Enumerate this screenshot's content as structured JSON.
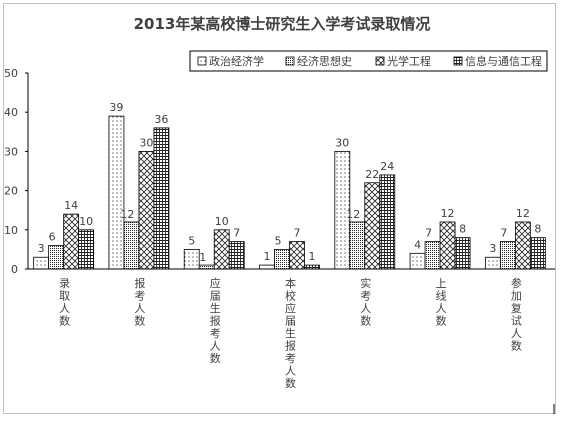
{
  "chart_data": {
    "type": "bar",
    "title": "2013年某高校博士研究生入学考试录取情况",
    "categories": [
      "录取人数",
      "报考人数",
      "应届生报考人数",
      "本校应届生报考人数",
      "实考人数",
      "上线人数",
      "参加复试人数"
    ],
    "series": [
      {
        "name": "政治经济学",
        "values": [
          3,
          39,
          5,
          1,
          30,
          4,
          3
        ]
      },
      {
        "name": "经济思想史",
        "values": [
          6,
          12,
          1,
          5,
          12,
          7,
          7
        ]
      },
      {
        "name": "光学工程",
        "values": [
          14,
          30,
          10,
          7,
          22,
          12,
          12
        ]
      },
      {
        "name": "信息与通信工程",
        "values": [
          10,
          36,
          7,
          1,
          24,
          8,
          8
        ]
      }
    ],
    "ylim": [
      0,
      50
    ],
    "yticks": [
      0,
      10,
      20,
      30,
      40,
      50
    ],
    "xlabel": "",
    "ylabel": "",
    "legend_position": "top-right",
    "grid": false,
    "data_labels": true,
    "patterns": [
      "dots",
      "dense-dots",
      "diagonal-cross",
      "grid"
    ]
  }
}
